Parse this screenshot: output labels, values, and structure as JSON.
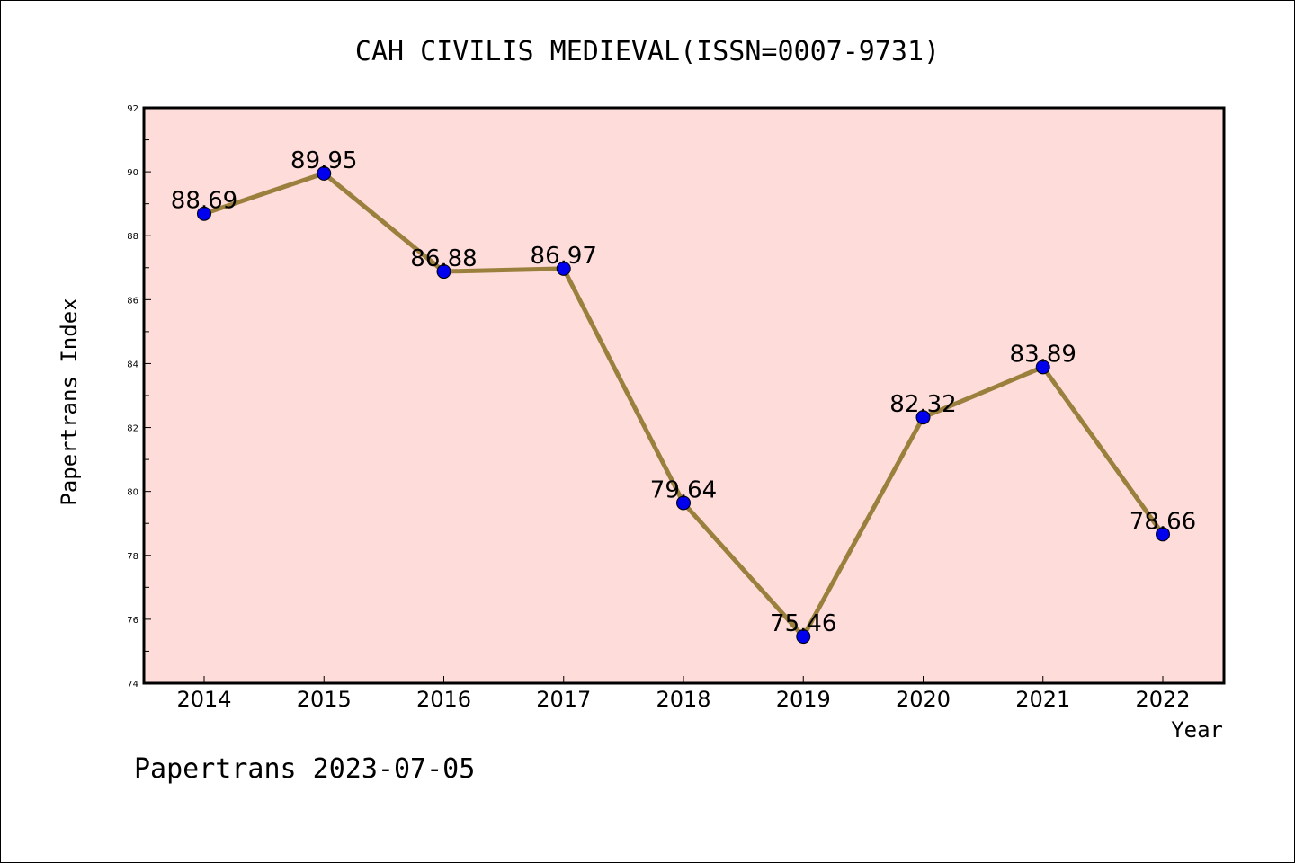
{
  "chart_data": {
    "type": "line",
    "title": "CAH CIVILIS MEDIEVAL(ISSN=0007-9731)",
    "xlabel": "Year",
    "ylabel": "Papertrans Index",
    "x": [
      "2014",
      "2015",
      "2016",
      "2017",
      "2018",
      "2019",
      "2020",
      "2021",
      "2022"
    ],
    "values": [
      88.69,
      89.95,
      86.88,
      86.97,
      79.64,
      75.46,
      82.32,
      83.89,
      78.66
    ],
    "data_labels": [
      "88.69",
      "89.95",
      "86.88",
      "86.97",
      "79.64",
      "75.46",
      "82.32",
      "83.89",
      "78.66"
    ],
    "ylim": [
      74,
      92
    ],
    "yticks": [
      "74",
      "76",
      "78",
      "80",
      "82",
      "84",
      "86",
      "88",
      "90",
      "92"
    ],
    "grid": false,
    "legend": "none",
    "colors": {
      "plot_background": "#FDDCDA",
      "line": "#9B7F3C",
      "marker": "#0000EE",
      "axis": "#000000"
    }
  },
  "footer": "Papertrans 2023-07-05"
}
